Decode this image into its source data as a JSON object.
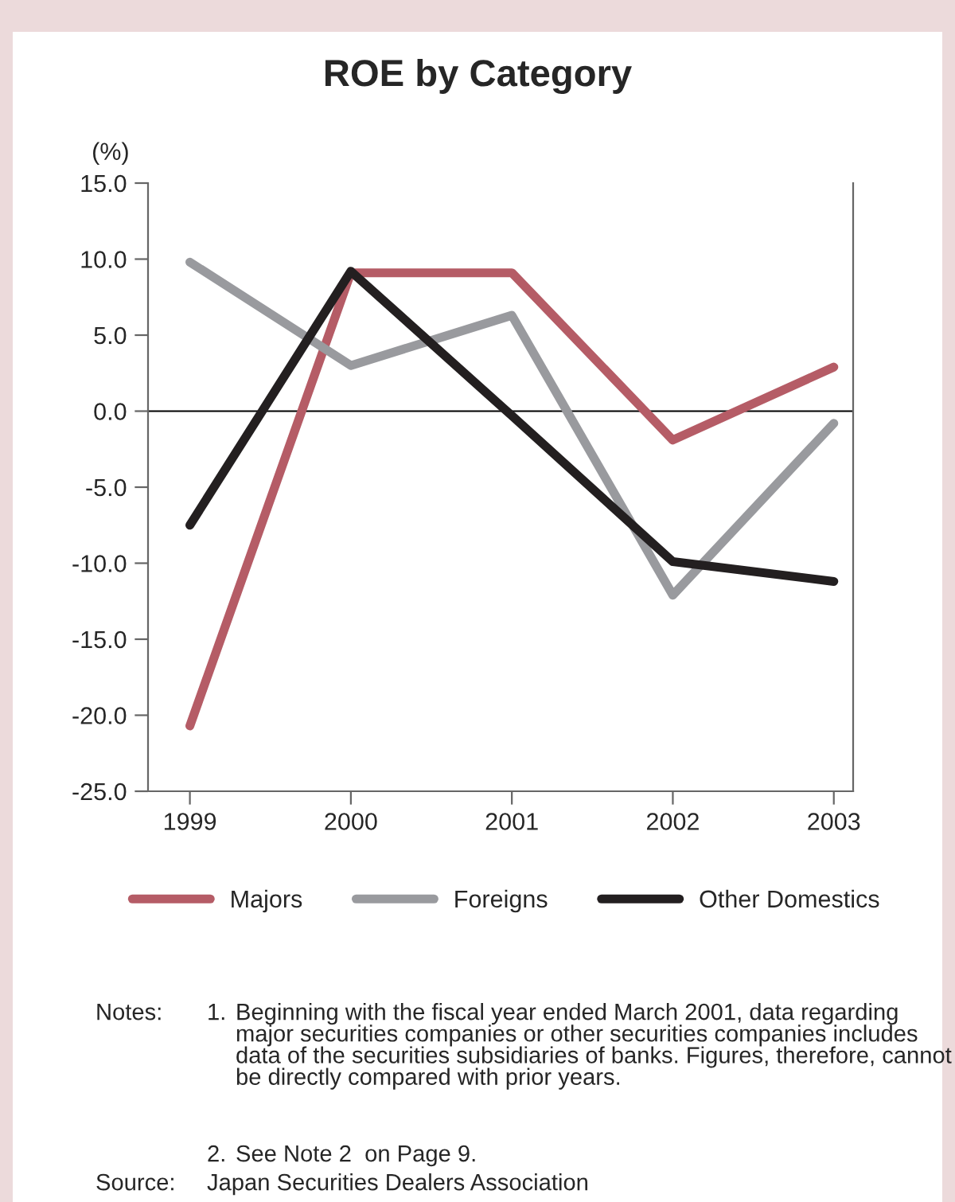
{
  "chart_data": {
    "type": "line",
    "title": "ROE by Category",
    "ylabel": "(%)",
    "categories": [
      "1999",
      "2000",
      "2001",
      "2002",
      "2003"
    ],
    "series": [
      {
        "name": "Majors",
        "color": "#b55c66",
        "values": [
          -20.7,
          9.1,
          9.1,
          -1.9,
          2.9
        ]
      },
      {
        "name": "Foreigns",
        "color": "#999a9e",
        "values": [
          9.8,
          3.0,
          6.3,
          -12.1,
          -0.8
        ]
      },
      {
        "name": "Other Domestics",
        "color": "#231f20",
        "values": [
          -7.5,
          9.2,
          -0.3,
          -9.9,
          -11.2
        ]
      }
    ],
    "ylim": [
      -25,
      15
    ],
    "yticks": [
      {
        "value": -25,
        "label": "-25.0"
      },
      {
        "value": -20,
        "label": "-20.0"
      },
      {
        "value": -15,
        "label": "-15.0"
      },
      {
        "value": -10,
        "label": "-10.0"
      },
      {
        "value": -5,
        "label": "-5.0"
      },
      {
        "value": 0,
        "label": "0.0"
      },
      {
        "value": 5,
        "label": "5.0"
      },
      {
        "value": 10,
        "label": "10.0"
      },
      {
        "value": 15,
        "label": "15.0"
      }
    ],
    "ref_lines": [
      {
        "axis": "y",
        "value": 0,
        "color": "#000000"
      }
    ],
    "grid": false,
    "legend": "bottom",
    "marker": "none",
    "line_style": "solid",
    "annotations": [
      "Notes:",
      "1.",
      "Beginning with the fiscal year ended March 2001, data regarding major securities companies or other securities companies includes data of the securities subsidiaries of banks. Figures, therefore, cannot be directly compared with prior years.",
      "2.",
      "See Note 2  on Page 9.",
      "Source:",
      "Japan Securities Dealers Association"
    ]
  }
}
